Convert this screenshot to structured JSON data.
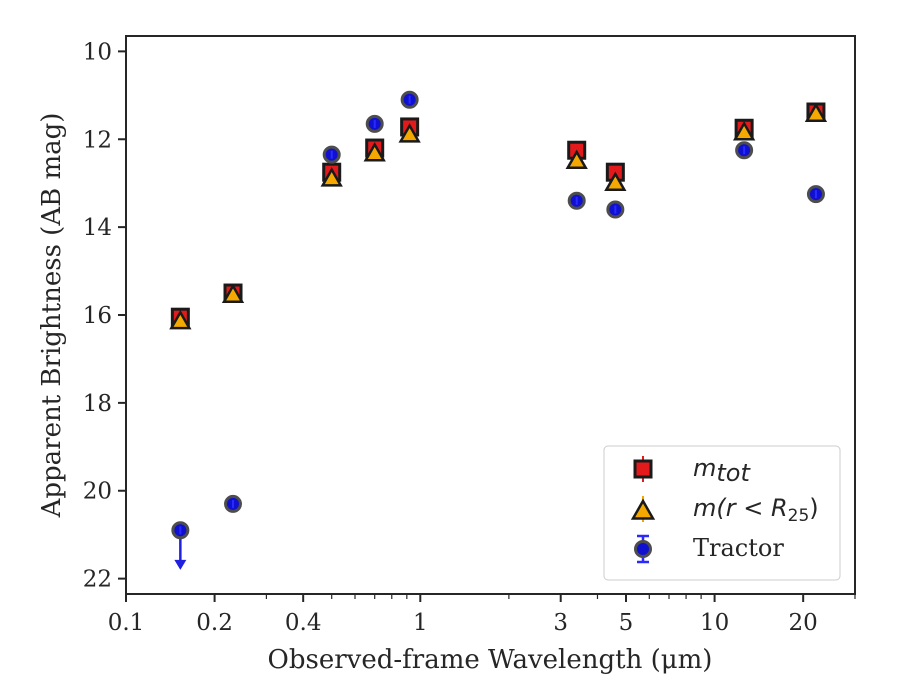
{
  "chart_data": {
    "type": "scatter",
    "xlabel": "Observed-frame Wavelength (μm)",
    "ylabel": "Apparent Brightness (AB mag)",
    "xscale": "log",
    "yinverted": true,
    "xlim": [
      0.1,
      30
    ],
    "ylim": [
      22.35,
      9.65
    ],
    "xticks": [
      {
        "value": 0.1,
        "label": "0.1"
      },
      {
        "value": 0.2,
        "label": "0.2"
      },
      {
        "value": 0.4,
        "label": "0.4"
      },
      {
        "value": 1,
        "label": "1"
      },
      {
        "value": 3,
        "label": "3"
      },
      {
        "value": 5,
        "label": "5"
      },
      {
        "value": 10,
        "label": "10"
      },
      {
        "value": 20,
        "label": "20"
      }
    ],
    "yticks": [
      {
        "value": 10,
        "label": "10"
      },
      {
        "value": 12,
        "label": "12"
      },
      {
        "value": 14,
        "label": "14"
      },
      {
        "value": 16,
        "label": "16"
      },
      {
        "value": 18,
        "label": "18"
      },
      {
        "value": 20,
        "label": "20"
      },
      {
        "value": 22,
        "label": "22"
      }
    ],
    "grid": false,
    "legend_position": "bottom-right",
    "series": [
      {
        "name": "m_tot",
        "legend_main": "m",
        "legend_sub": "tot",
        "marker": "square",
        "color": "#e31a1c",
        "x": [
          0.153,
          0.231,
          0.5,
          0.7,
          0.92,
          3.4,
          4.6,
          12.6,
          22.1
        ],
        "y": [
          16.05,
          15.5,
          12.75,
          12.2,
          11.72,
          12.25,
          12.75,
          11.75,
          11.38
        ]
      },
      {
        "name": "m(r < R_25)",
        "legend_pre": "m(r < R",
        "legend_sub": "25",
        "legend_post": ")",
        "marker": "triangle",
        "color": "#f5a800",
        "x": [
          0.153,
          0.231,
          0.5,
          0.7,
          0.92,
          3.4,
          4.6,
          12.6,
          22.1
        ],
        "y": [
          16.1,
          15.5,
          12.85,
          12.28,
          11.85,
          12.45,
          12.95,
          11.8,
          11.38
        ]
      },
      {
        "name": "Tractor",
        "legend_label": "Tractor",
        "marker": "circle",
        "color": "#1010d0",
        "x": [
          0.153,
          0.231,
          0.5,
          0.7,
          0.92,
          3.4,
          4.6,
          12.6,
          22.1
        ],
        "y": [
          20.9,
          20.3,
          12.35,
          11.65,
          11.1,
          13.4,
          13.6,
          12.25,
          13.25
        ],
        "upper_limit_index": 0,
        "upper_limit_arrow_to": 21.8
      }
    ]
  }
}
